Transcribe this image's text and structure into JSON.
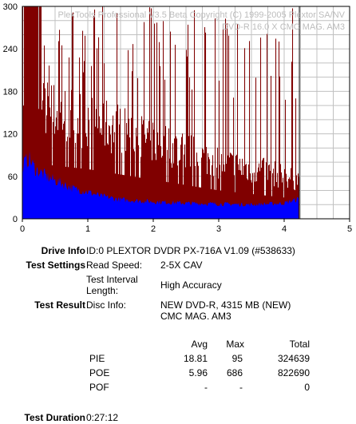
{
  "chart_data": {
    "type": "bar",
    "watermark": [
      "PlexTools Professional V3.5 Beta Copyright (C) 1999-2005 Plextor SA/NV",
      "DVD-R    16.0 X    CMC MAG. AM3"
    ],
    "xlim": [
      0,
      5
    ],
    "ylim": [
      0,
      300
    ],
    "x_ticks": [
      "0",
      "1",
      "2",
      "3",
      "4",
      "5"
    ],
    "y_ticks": [
      "0",
      "60",
      "120",
      "180",
      "240",
      "300"
    ],
    "grid": true,
    "data_end_x": 4.22,
    "series": [
      {
        "name": "PIE",
        "color": "#0000ff",
        "x": [
          0,
          0.1,
          0.2,
          0.4,
          0.6,
          0.8,
          1.0,
          1.2,
          1.5,
          2.0,
          2.5,
          3.0,
          3.5,
          4.0,
          4.22
        ],
        "values": [
          75,
          85,
          70,
          58,
          50,
          42,
          38,
          32,
          27,
          24,
          22,
          21,
          20,
          22,
          28
        ]
      },
      {
        "name": "POE",
        "color": "#800000",
        "x": [
          0,
          0.5,
          1.0,
          1.5,
          2.0,
          2.5,
          3.0,
          3.5,
          4.0,
          4.22
        ],
        "values": [
          160,
          150,
          140,
          125,
          110,
          95,
          80,
          70,
          60,
          55
        ],
        "spike_max": 300
      }
    ]
  },
  "info": {
    "drive_info_label": "Drive Info",
    "drive_info_value": "ID:0 PLEXTOR DVDR PX-716A V1.09 (#538633)",
    "test_settings_label": "Test Settings",
    "read_speed_label": "Read Speed:",
    "read_speed_value": "2-5X CAV",
    "interval_label_1": "Test Interval",
    "interval_label_2": "Length:",
    "interval_value": "High Accuracy",
    "test_result_label": "Test Result",
    "disc_info_label": "Disc Info:",
    "disc_info_value_1": "NEW DVD-R, 4315 MB (NEW)",
    "disc_info_value_2": "CMC MAG. AM3",
    "duration_label": "Test Duration",
    "duration_value": "0:27:12"
  },
  "results": {
    "headers": {
      "avg": "Avg",
      "max": "Max",
      "total": "Total"
    },
    "rows": [
      {
        "name": "PIE",
        "avg": "18.81",
        "max": "95",
        "total": "324639"
      },
      {
        "name": "POE",
        "avg": "5.96",
        "max": "686",
        "total": "822690"
      },
      {
        "name": "POF",
        "avg": "-",
        "max": "-",
        "total": "0"
      }
    ]
  }
}
